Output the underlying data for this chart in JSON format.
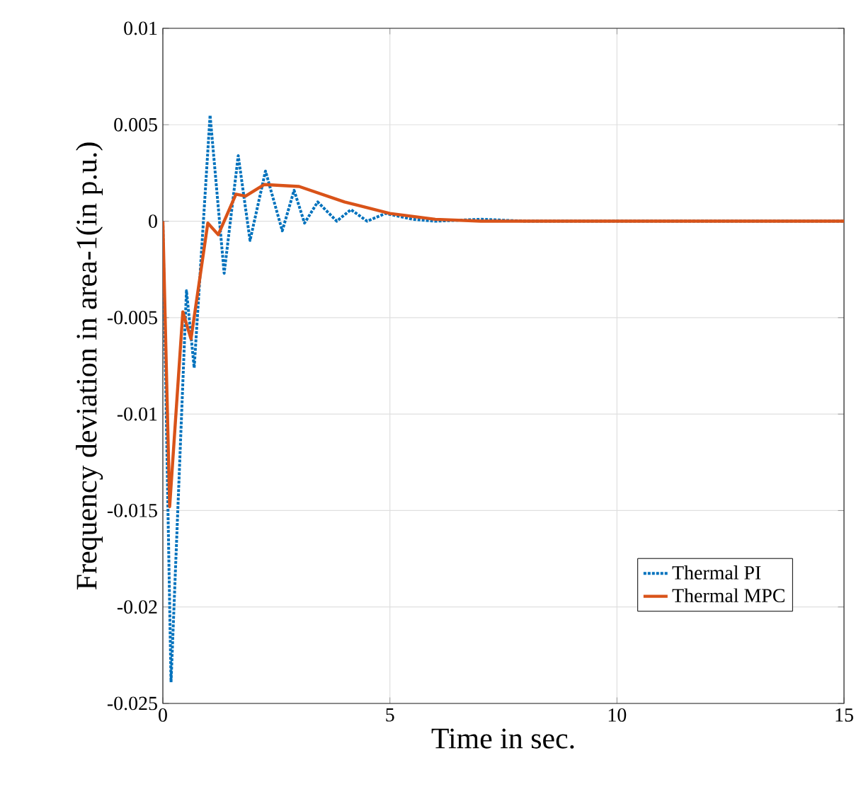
{
  "chart_data": {
    "type": "line",
    "xlabel": "Time in sec.",
    "ylabel": "Frequency deviation in area-1(in p.u.)",
    "xlim": [
      0,
      15
    ],
    "xticks": [
      0,
      5,
      10,
      15
    ],
    "ylim": [
      -0.025,
      0.01
    ],
    "yticks": [
      -0.025,
      -0.02,
      -0.015,
      -0.01,
      -0.005,
      0,
      0.005,
      0.01
    ],
    "grid": true,
    "legend": "bottom right",
    "series": [
      {
        "name": "Thermal PI",
        "color": "#0072bd",
        "line_style": "dotted",
        "x": [
          0,
          0.18,
          0.52,
          0.69,
          1.04,
          1.35,
          1.66,
          1.92,
          2.26,
          2.63,
          2.89,
          3.12,
          3.41,
          3.83,
          4.14,
          4.5,
          4.9,
          5.5,
          6,
          7,
          8,
          10,
          15
        ],
        "values": [
          0,
          -0.0239,
          -0.0036,
          -0.0076,
          0.0055,
          -0.0027,
          0.0034,
          -0.001,
          0.0026,
          -0.0005,
          0.0016,
          -0.0001,
          0.001,
          0,
          0.0006,
          0,
          0.0004,
          0.0001,
          0,
          0.0001,
          0,
          0,
          0
        ]
      },
      {
        "name": "Thermal MPC",
        "color": "#d95319",
        "line_style": "solid",
        "x": [
          0,
          0.15,
          0.44,
          0.62,
          0.99,
          1.22,
          1.61,
          1.82,
          2.23,
          3,
          4,
          5,
          6,
          7,
          10,
          15
        ],
        "values": [
          0,
          -0.0148,
          -0.0047,
          -0.0061,
          -0.0001,
          -0.0007,
          0.0014,
          0.0013,
          0.0019,
          0.0018,
          0.001,
          0.0004,
          0.0001,
          0,
          0,
          0
        ]
      }
    ]
  }
}
